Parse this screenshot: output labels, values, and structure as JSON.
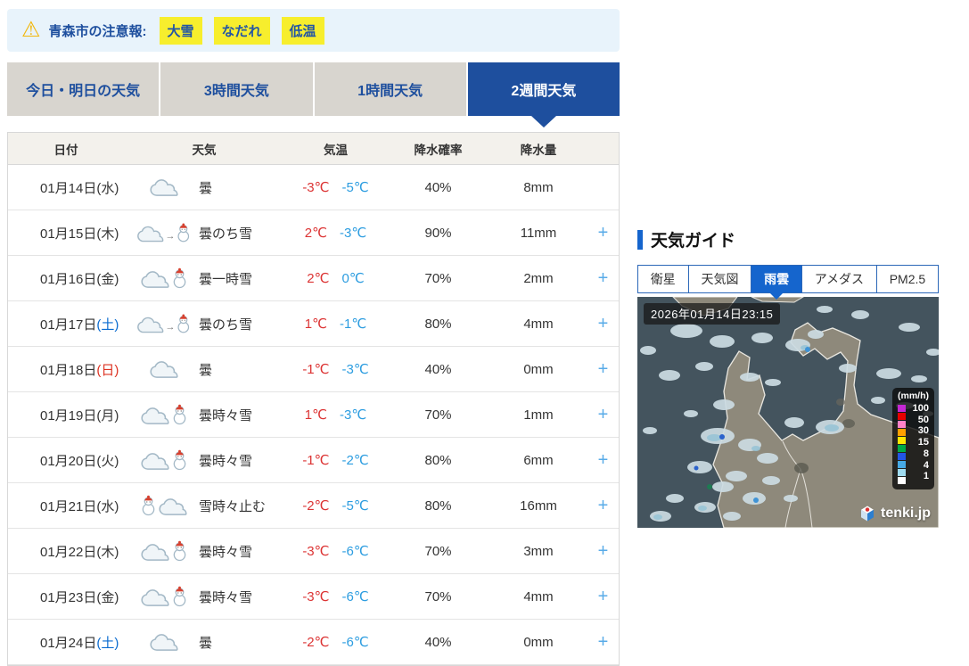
{
  "alert": {
    "title": "青森市の注意報:",
    "tags": [
      "大雪",
      "なだれ",
      "低温"
    ]
  },
  "main_tabs": [
    {
      "label": "今日・明日の天気",
      "active": false
    },
    {
      "label": "3時間天気",
      "active": false
    },
    {
      "label": "1時間天気",
      "active": false
    },
    {
      "label": "2週間天気",
      "active": true
    }
  ],
  "table": {
    "headers": [
      "日付",
      "天気",
      "気温",
      "降水確率",
      "降水量"
    ],
    "rows": [
      {
        "date": "01月14日",
        "day": "(水)",
        "icon": "cloud",
        "weather": "曇",
        "high": "-3℃",
        "low": "-5℃",
        "pop": "40%",
        "precip": "8mm",
        "expand": ""
      },
      {
        "date": "01月15日",
        "day": "(木)",
        "icon": "cloud-then-snow",
        "weather": "曇のち雪",
        "high": "2℃",
        "low": "-3℃",
        "pop": "90%",
        "precip": "11mm",
        "expand": "+"
      },
      {
        "date": "01月16日",
        "day": "(金)",
        "icon": "cloud-snow",
        "weather": "曇一時雪",
        "high": "2℃",
        "low": "0℃",
        "pop": "70%",
        "precip": "2mm",
        "expand": "+"
      },
      {
        "date": "01月17日",
        "day": "(土)",
        "icon": "cloud-then-snow",
        "weather": "曇のち雪",
        "high": "1℃",
        "low": "-1℃",
        "pop": "80%",
        "precip": "4mm",
        "expand": "+"
      },
      {
        "date": "01月18日",
        "day": "(日)",
        "icon": "cloud",
        "weather": "曇",
        "high": "-1℃",
        "low": "-3℃",
        "pop": "40%",
        "precip": "0mm",
        "expand": "+"
      },
      {
        "date": "01月19日",
        "day": "(月)",
        "icon": "cloud-snow",
        "weather": "曇時々雪",
        "high": "1℃",
        "low": "-3℃",
        "pop": "70%",
        "precip": "1mm",
        "expand": "+"
      },
      {
        "date": "01月20日",
        "day": "(火)",
        "icon": "cloud-snow",
        "weather": "曇時々雪",
        "high": "-1℃",
        "low": "-2℃",
        "pop": "80%",
        "precip": "6mm",
        "expand": "+"
      },
      {
        "date": "01月21日",
        "day": "(水)",
        "icon": "snow-cloud",
        "weather": "雪時々止む",
        "high": "-2℃",
        "low": "-5℃",
        "pop": "80%",
        "precip": "16mm",
        "expand": "+"
      },
      {
        "date": "01月22日",
        "day": "(木)",
        "icon": "cloud-snow",
        "weather": "曇時々雪",
        "high": "-3℃",
        "low": "-6℃",
        "pop": "70%",
        "precip": "3mm",
        "expand": "+"
      },
      {
        "date": "01月23日",
        "day": "(金)",
        "icon": "cloud-snow",
        "weather": "曇時々雪",
        "high": "-3℃",
        "low": "-6℃",
        "pop": "70%",
        "precip": "4mm",
        "expand": "+"
      },
      {
        "date": "01月24日",
        "day": "(土)",
        "icon": "cloud",
        "weather": "曇",
        "high": "-2℃",
        "low": "-6℃",
        "pop": "40%",
        "precip": "0mm",
        "expand": "+"
      }
    ]
  },
  "guide": {
    "title": "天気ガイド",
    "tabs": [
      {
        "label": "衛星",
        "active": false
      },
      {
        "label": "天気図",
        "active": false
      },
      {
        "label": "雨雲",
        "active": true
      },
      {
        "label": "アメダス",
        "active": false
      },
      {
        "label": "PM2.5",
        "active": false
      }
    ],
    "map": {
      "timestamp": "2026年01月14日23:15",
      "legend": {
        "unit": "(mm/h)",
        "labels": [
          "100",
          "50",
          "30",
          "15",
          "8",
          "4",
          "1"
        ],
        "colors": [
          "#c428d4",
          "#e60000",
          "#ff82c8",
          "#ffa000",
          "#ffe600",
          "#00aa46",
          "#2255e6",
          "#46aae6",
          "#a0dcf0",
          "#ffffff"
        ]
      },
      "logo": "tenki.jp"
    }
  },
  "colors": {
    "tab_navy": "#1e4f9e",
    "guide_blue": "#1565cd",
    "alert_tag_yellow": "#f7ee2d",
    "temp_high_red": "#dc3434",
    "temp_low_blue": "#2d9de0",
    "day_saturday": "#0a6bd0",
    "day_sunday": "#dd3322",
    "sea": "#44545e",
    "land": "#8e897b"
  }
}
